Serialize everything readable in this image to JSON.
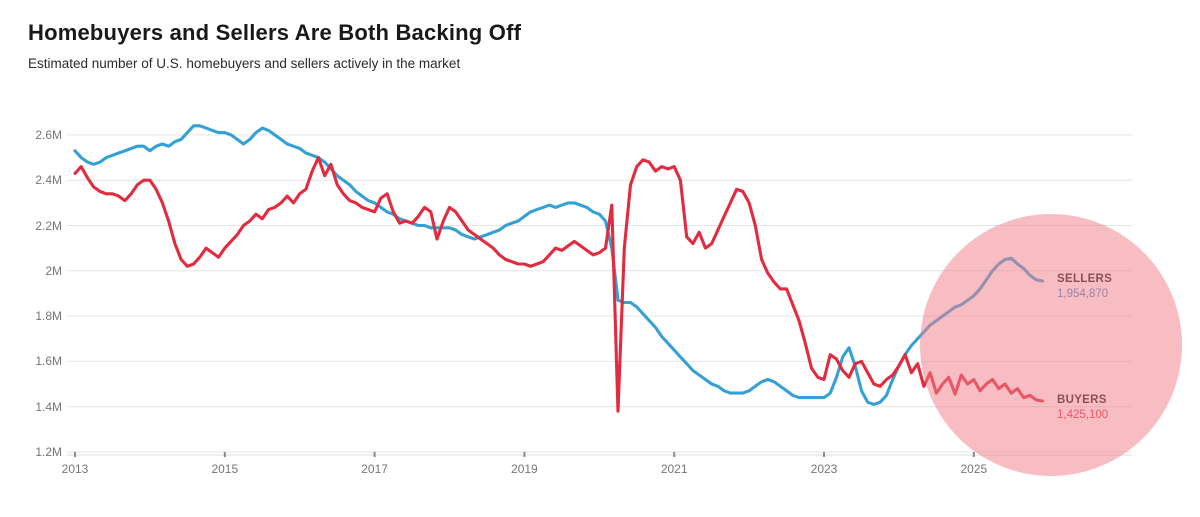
{
  "header": {
    "title": "Homebuyers and Sellers Are Both Backing Off",
    "subtitle": "Estimated number of U.S. homebuyers and sellers actively in the market"
  },
  "colors": {
    "sellers_line": "#34a1d6",
    "buyers_line": "#e12b3f",
    "sellers_value_text": "#3d85c8",
    "buyers_value_text": "#e0293e",
    "highlight_fill": "rgba(240,128,138,0.52)",
    "gridline": "#e4e4e4",
    "axis_text": "#767676"
  },
  "annotations": {
    "sellers_label": "SELLERS",
    "sellers_value": "1,954,870",
    "buyers_label": "BUYERS",
    "buyers_value": "1,425,100"
  },
  "chart_data": {
    "type": "line",
    "title": "Homebuyers and Sellers Are Both Backing Off",
    "subtitle": "Estimated number of U.S. homebuyers and sellers actively in the market",
    "x_unit": "monthly, decimal years",
    "x_start_year": 2013,
    "x_months_per_point": 1,
    "x_tick_labels": [
      "2013",
      "2015",
      "2017",
      "2019",
      "2021",
      "2023",
      "2025"
    ],
    "x_tick_years": [
      2013,
      2015,
      2017,
      2019,
      2021,
      2023,
      2025
    ],
    "y_tick_labels": [
      "2.6M",
      "2.4M",
      "2.2M",
      "2M",
      "1.8M",
      "1.6M",
      "1.4M",
      "1.2M"
    ],
    "y_tick_values": [
      2.6,
      2.4,
      2.2,
      2.0,
      1.8,
      1.6,
      1.4,
      1.2
    ],
    "ylim": [
      1.2,
      2.6
    ],
    "grid": "horizontal only",
    "legend": "end-of-line labels, right side",
    "highlight": "pink translucent circle over 2024-2026 region",
    "end_values": {
      "sellers": 1954870,
      "buyers": 1425100
    },
    "series": [
      {
        "name": "SELLERS",
        "unit": "millions",
        "values": [
          2.53,
          2.5,
          2.48,
          2.47,
          2.48,
          2.5,
          2.51,
          2.52,
          2.53,
          2.54,
          2.55,
          2.55,
          2.53,
          2.55,
          2.56,
          2.55,
          2.57,
          2.58,
          2.61,
          2.64,
          2.64,
          2.63,
          2.62,
          2.61,
          2.61,
          2.6,
          2.58,
          2.56,
          2.58,
          2.61,
          2.63,
          2.62,
          2.6,
          2.58,
          2.56,
          2.55,
          2.54,
          2.52,
          2.51,
          2.5,
          2.48,
          2.45,
          2.42,
          2.4,
          2.38,
          2.35,
          2.33,
          2.31,
          2.3,
          2.28,
          2.26,
          2.25,
          2.23,
          2.22,
          2.21,
          2.2,
          2.2,
          2.19,
          2.19,
          2.19,
          2.19,
          2.18,
          2.16,
          2.15,
          2.14,
          2.15,
          2.16,
          2.17,
          2.18,
          2.2,
          2.21,
          2.22,
          2.24,
          2.26,
          2.27,
          2.28,
          2.29,
          2.28,
          2.29,
          2.3,
          2.3,
          2.29,
          2.28,
          2.26,
          2.25,
          2.22,
          2.1,
          1.87,
          1.86,
          1.86,
          1.84,
          1.81,
          1.78,
          1.75,
          1.71,
          1.68,
          1.65,
          1.62,
          1.59,
          1.56,
          1.54,
          1.52,
          1.5,
          1.49,
          1.47,
          1.46,
          1.46,
          1.46,
          1.47,
          1.49,
          1.51,
          1.52,
          1.51,
          1.49,
          1.47,
          1.45,
          1.44,
          1.44,
          1.44,
          1.44,
          1.44,
          1.46,
          1.53,
          1.62,
          1.66,
          1.58,
          1.47,
          1.42,
          1.41,
          1.42,
          1.45,
          1.52,
          1.58,
          1.63,
          1.67,
          1.7,
          1.73,
          1.76,
          1.78,
          1.8,
          1.82,
          1.84,
          1.85,
          1.87,
          1.89,
          1.92,
          1.96,
          2.0,
          2.03,
          2.05,
          2.055,
          2.03,
          2.01,
          1.98,
          1.96,
          1.9549
        ]
      },
      {
        "name": "BUYERS",
        "unit": "millions",
        "values": [
          2.43,
          2.46,
          2.41,
          2.37,
          2.35,
          2.34,
          2.34,
          2.33,
          2.31,
          2.34,
          2.38,
          2.4,
          2.4,
          2.36,
          2.3,
          2.22,
          2.12,
          2.05,
          2.02,
          2.03,
          2.06,
          2.1,
          2.08,
          2.06,
          2.1,
          2.13,
          2.16,
          2.2,
          2.22,
          2.25,
          2.23,
          2.27,
          2.28,
          2.3,
          2.33,
          2.3,
          2.34,
          2.36,
          2.44,
          2.5,
          2.42,
          2.47,
          2.38,
          2.34,
          2.31,
          2.3,
          2.28,
          2.27,
          2.26,
          2.32,
          2.34,
          2.26,
          2.21,
          2.22,
          2.21,
          2.24,
          2.28,
          2.26,
          2.14,
          2.22,
          2.28,
          2.26,
          2.22,
          2.18,
          2.16,
          2.14,
          2.12,
          2.1,
          2.07,
          2.05,
          2.04,
          2.03,
          2.03,
          2.02,
          2.03,
          2.04,
          2.07,
          2.1,
          2.09,
          2.11,
          2.13,
          2.11,
          2.09,
          2.07,
          2.08,
          2.1,
          2.29,
          1.38,
          2.1,
          2.38,
          2.46,
          2.49,
          2.48,
          2.44,
          2.46,
          2.45,
          2.46,
          2.4,
          2.15,
          2.12,
          2.17,
          2.1,
          2.12,
          2.18,
          2.24,
          2.3,
          2.36,
          2.35,
          2.3,
          2.2,
          2.05,
          1.99,
          1.95,
          1.92,
          1.92,
          1.85,
          1.78,
          1.68,
          1.57,
          1.53,
          1.52,
          1.63,
          1.61,
          1.56,
          1.53,
          1.59,
          1.6,
          1.55,
          1.5,
          1.49,
          1.52,
          1.54,
          1.58,
          1.63,
          1.55,
          1.59,
          1.49,
          1.55,
          1.46,
          1.5,
          1.53,
          1.455,
          1.54,
          1.5,
          1.52,
          1.47,
          1.5,
          1.52,
          1.48,
          1.5,
          1.46,
          1.48,
          1.44,
          1.45,
          1.43,
          1.4251
        ]
      }
    ]
  }
}
